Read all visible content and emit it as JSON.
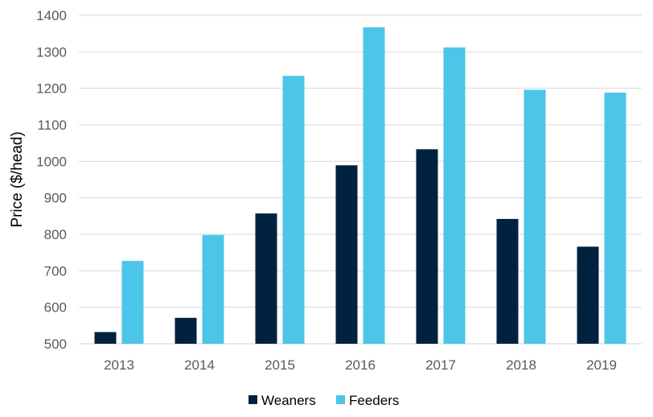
{
  "chart_data": {
    "type": "bar",
    "title": "",
    "xlabel": "",
    "ylabel": "Price ($/head)",
    "ylim": [
      500,
      1400
    ],
    "yticks": [
      500,
      600,
      700,
      800,
      900,
      1000,
      1100,
      1200,
      1300,
      1400
    ],
    "grid": true,
    "legend_position": "bottom",
    "categories": [
      "2013",
      "2014",
      "2015",
      "2016",
      "2017",
      "2018",
      "2019"
    ],
    "series": [
      {
        "name": "Weaners",
        "color": "#002240",
        "values": [
          532,
          571,
          857,
          989,
          1033,
          842,
          766
        ]
      },
      {
        "name": "Feeders",
        "color": "#4CC6E8",
        "values": [
          727,
          798,
          1234,
          1367,
          1312,
          1196,
          1188
        ]
      }
    ]
  }
}
